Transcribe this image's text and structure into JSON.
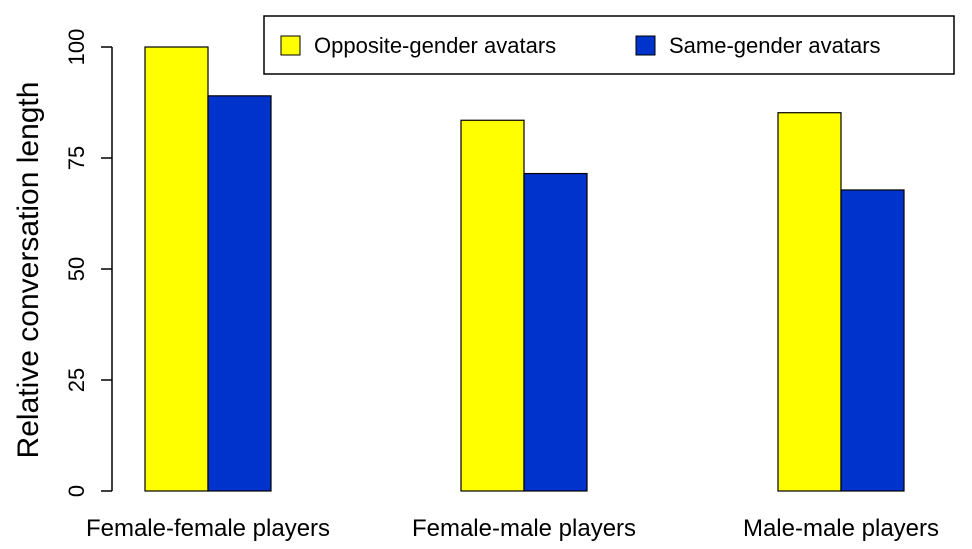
{
  "chart_data": {
    "type": "bar",
    "title": "",
    "xlabel": "",
    "ylabel": "Relative conversation length",
    "ylim": [
      0,
      100
    ],
    "yticks": [
      0,
      25,
      50,
      75,
      100
    ],
    "categories": [
      "Female-female players",
      "Female-male players",
      "Male-male players"
    ],
    "series": [
      {
        "name": "Opposite-gender avatars",
        "values": [
          100,
          83.5,
          85.2
        ],
        "color": "#FFFF00"
      },
      {
        "name": "Same-gender avatars",
        "values": [
          89,
          71.5,
          67.8
        ],
        "color": "#0033CC"
      }
    ],
    "grid": false,
    "legend_position": "top-right"
  }
}
